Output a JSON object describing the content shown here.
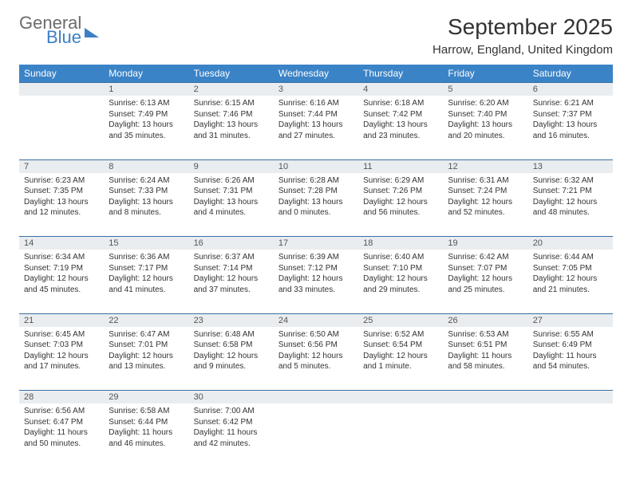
{
  "brand": {
    "general": "General",
    "blue": "Blue"
  },
  "title": "September 2025",
  "location": "Harrow, England, United Kingdom",
  "colors": {
    "header_bg": "#3b83c7",
    "header_text": "#ffffff",
    "daynum_bg": "#e9edf0",
    "daynum_border": "#3b6fa0",
    "body_text": "#333333",
    "logo_gray": "#6b6b6b",
    "logo_blue": "#3b7fc4",
    "page_bg": "#ffffff"
  },
  "fonts": {
    "month_title_size": 28,
    "location_size": 15,
    "weekday_size": 12,
    "daynum_size": 11,
    "cell_size": 10
  },
  "weekdays": [
    "Sunday",
    "Monday",
    "Tuesday",
    "Wednesday",
    "Thursday",
    "Friday",
    "Saturday"
  ],
  "weeks": [
    [
      null,
      {
        "n": "1",
        "sr": "Sunrise: 6:13 AM",
        "ss": "Sunset: 7:49 PM",
        "d1": "Daylight: 13 hours",
        "d2": "and 35 minutes."
      },
      {
        "n": "2",
        "sr": "Sunrise: 6:15 AM",
        "ss": "Sunset: 7:46 PM",
        "d1": "Daylight: 13 hours",
        "d2": "and 31 minutes."
      },
      {
        "n": "3",
        "sr": "Sunrise: 6:16 AM",
        "ss": "Sunset: 7:44 PM",
        "d1": "Daylight: 13 hours",
        "d2": "and 27 minutes."
      },
      {
        "n": "4",
        "sr": "Sunrise: 6:18 AM",
        "ss": "Sunset: 7:42 PM",
        "d1": "Daylight: 13 hours",
        "d2": "and 23 minutes."
      },
      {
        "n": "5",
        "sr": "Sunrise: 6:20 AM",
        "ss": "Sunset: 7:40 PM",
        "d1": "Daylight: 13 hours",
        "d2": "and 20 minutes."
      },
      {
        "n": "6",
        "sr": "Sunrise: 6:21 AM",
        "ss": "Sunset: 7:37 PM",
        "d1": "Daylight: 13 hours",
        "d2": "and 16 minutes."
      }
    ],
    [
      {
        "n": "7",
        "sr": "Sunrise: 6:23 AM",
        "ss": "Sunset: 7:35 PM",
        "d1": "Daylight: 13 hours",
        "d2": "and 12 minutes."
      },
      {
        "n": "8",
        "sr": "Sunrise: 6:24 AM",
        "ss": "Sunset: 7:33 PM",
        "d1": "Daylight: 13 hours",
        "d2": "and 8 minutes."
      },
      {
        "n": "9",
        "sr": "Sunrise: 6:26 AM",
        "ss": "Sunset: 7:31 PM",
        "d1": "Daylight: 13 hours",
        "d2": "and 4 minutes."
      },
      {
        "n": "10",
        "sr": "Sunrise: 6:28 AM",
        "ss": "Sunset: 7:28 PM",
        "d1": "Daylight: 13 hours",
        "d2": "and 0 minutes."
      },
      {
        "n": "11",
        "sr": "Sunrise: 6:29 AM",
        "ss": "Sunset: 7:26 PM",
        "d1": "Daylight: 12 hours",
        "d2": "and 56 minutes."
      },
      {
        "n": "12",
        "sr": "Sunrise: 6:31 AM",
        "ss": "Sunset: 7:24 PM",
        "d1": "Daylight: 12 hours",
        "d2": "and 52 minutes."
      },
      {
        "n": "13",
        "sr": "Sunrise: 6:32 AM",
        "ss": "Sunset: 7:21 PM",
        "d1": "Daylight: 12 hours",
        "d2": "and 48 minutes."
      }
    ],
    [
      {
        "n": "14",
        "sr": "Sunrise: 6:34 AM",
        "ss": "Sunset: 7:19 PM",
        "d1": "Daylight: 12 hours",
        "d2": "and 45 minutes."
      },
      {
        "n": "15",
        "sr": "Sunrise: 6:36 AM",
        "ss": "Sunset: 7:17 PM",
        "d1": "Daylight: 12 hours",
        "d2": "and 41 minutes."
      },
      {
        "n": "16",
        "sr": "Sunrise: 6:37 AM",
        "ss": "Sunset: 7:14 PM",
        "d1": "Daylight: 12 hours",
        "d2": "and 37 minutes."
      },
      {
        "n": "17",
        "sr": "Sunrise: 6:39 AM",
        "ss": "Sunset: 7:12 PM",
        "d1": "Daylight: 12 hours",
        "d2": "and 33 minutes."
      },
      {
        "n": "18",
        "sr": "Sunrise: 6:40 AM",
        "ss": "Sunset: 7:10 PM",
        "d1": "Daylight: 12 hours",
        "d2": "and 29 minutes."
      },
      {
        "n": "19",
        "sr": "Sunrise: 6:42 AM",
        "ss": "Sunset: 7:07 PM",
        "d1": "Daylight: 12 hours",
        "d2": "and 25 minutes."
      },
      {
        "n": "20",
        "sr": "Sunrise: 6:44 AM",
        "ss": "Sunset: 7:05 PM",
        "d1": "Daylight: 12 hours",
        "d2": "and 21 minutes."
      }
    ],
    [
      {
        "n": "21",
        "sr": "Sunrise: 6:45 AM",
        "ss": "Sunset: 7:03 PM",
        "d1": "Daylight: 12 hours",
        "d2": "and 17 minutes."
      },
      {
        "n": "22",
        "sr": "Sunrise: 6:47 AM",
        "ss": "Sunset: 7:01 PM",
        "d1": "Daylight: 12 hours",
        "d2": "and 13 minutes."
      },
      {
        "n": "23",
        "sr": "Sunrise: 6:48 AM",
        "ss": "Sunset: 6:58 PM",
        "d1": "Daylight: 12 hours",
        "d2": "and 9 minutes."
      },
      {
        "n": "24",
        "sr": "Sunrise: 6:50 AM",
        "ss": "Sunset: 6:56 PM",
        "d1": "Daylight: 12 hours",
        "d2": "and 5 minutes."
      },
      {
        "n": "25",
        "sr": "Sunrise: 6:52 AM",
        "ss": "Sunset: 6:54 PM",
        "d1": "Daylight: 12 hours",
        "d2": "and 1 minute."
      },
      {
        "n": "26",
        "sr": "Sunrise: 6:53 AM",
        "ss": "Sunset: 6:51 PM",
        "d1": "Daylight: 11 hours",
        "d2": "and 58 minutes."
      },
      {
        "n": "27",
        "sr": "Sunrise: 6:55 AM",
        "ss": "Sunset: 6:49 PM",
        "d1": "Daylight: 11 hours",
        "d2": "and 54 minutes."
      }
    ],
    [
      {
        "n": "28",
        "sr": "Sunrise: 6:56 AM",
        "ss": "Sunset: 6:47 PM",
        "d1": "Daylight: 11 hours",
        "d2": "and 50 minutes."
      },
      {
        "n": "29",
        "sr": "Sunrise: 6:58 AM",
        "ss": "Sunset: 6:44 PM",
        "d1": "Daylight: 11 hours",
        "d2": "and 46 minutes."
      },
      {
        "n": "30",
        "sr": "Sunrise: 7:00 AM",
        "ss": "Sunset: 6:42 PM",
        "d1": "Daylight: 11 hours",
        "d2": "and 42 minutes."
      },
      null,
      null,
      null,
      null
    ]
  ]
}
